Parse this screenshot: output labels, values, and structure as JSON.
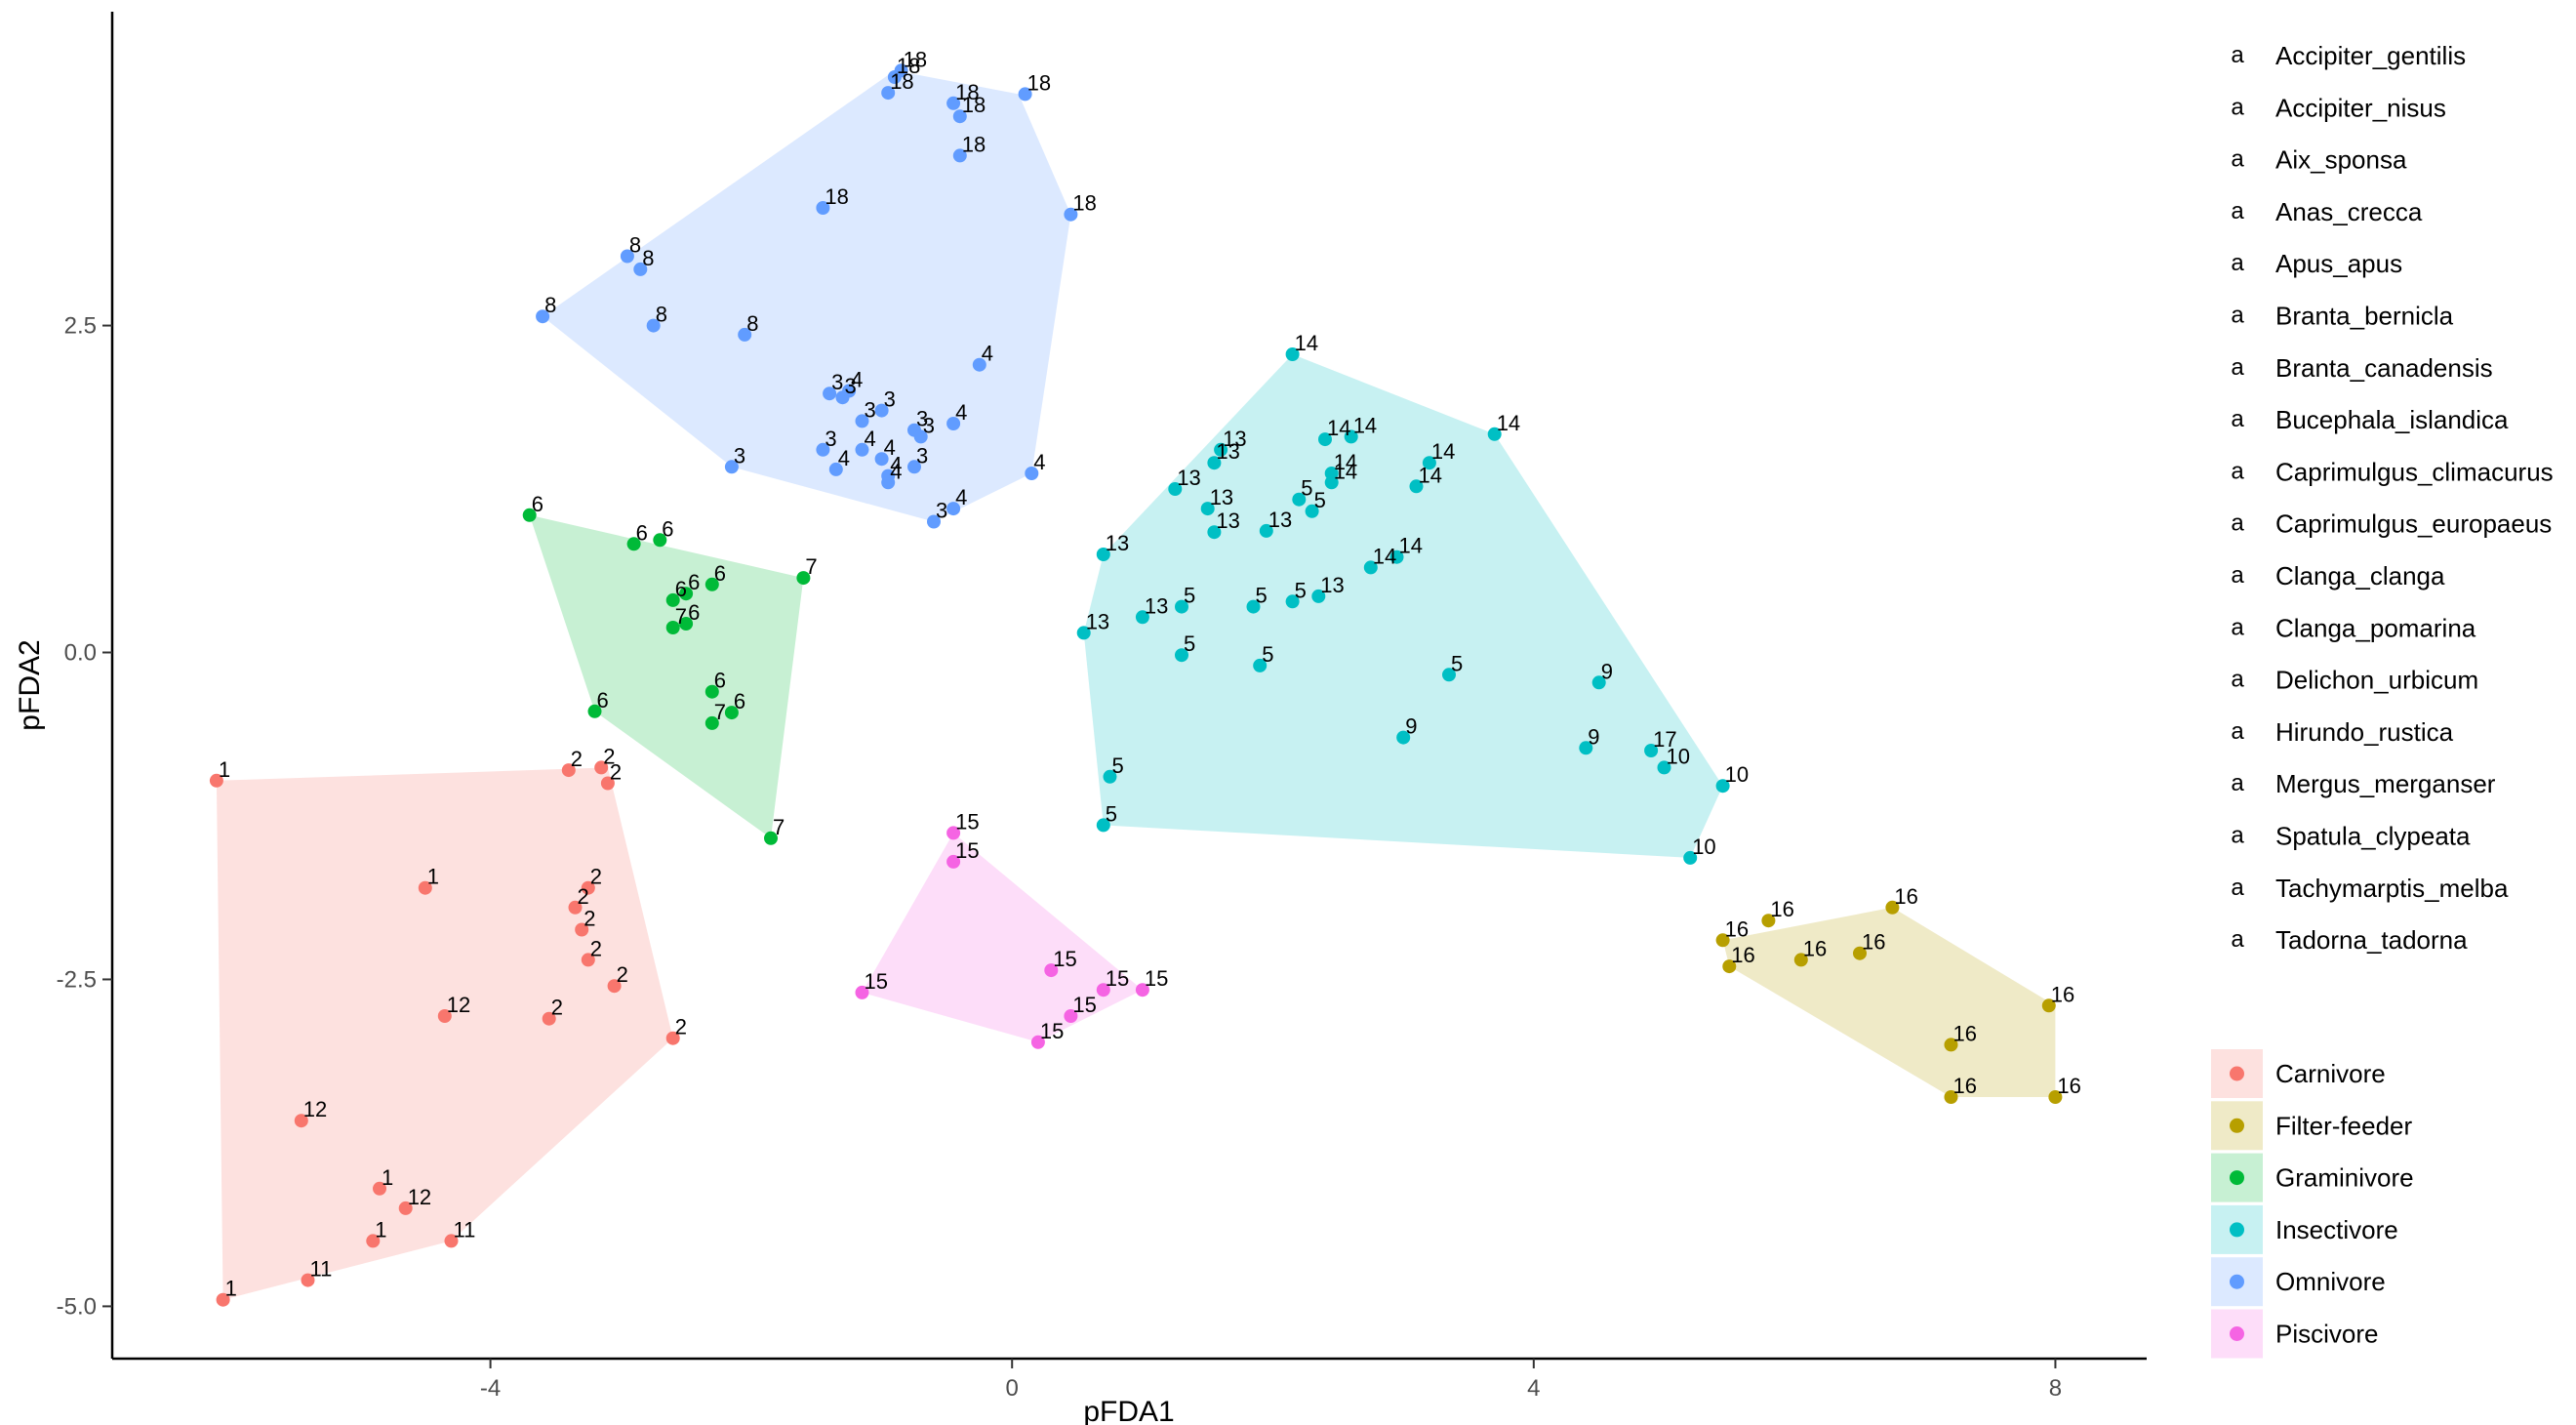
{
  "chart_data": {
    "type": "scatter",
    "title": "",
    "xlabel": "pFDA1",
    "ylabel": "pFDA2",
    "xlim": [
      -6.9,
      8.7
    ],
    "ylim": [
      -5.4,
      4.9
    ],
    "x_ticks": [
      -4,
      0,
      4,
      8
    ],
    "y_ticks": [
      -5.0,
      -2.5,
      0.0,
      2.5
    ],
    "x_tick_labels": [
      "-4",
      "0",
      "4",
      "8"
    ],
    "y_tick_labels": [
      "-5.0",
      "-2.5",
      "0.0",
      "2.5"
    ],
    "grid": false,
    "hull_fill_alpha": 0.22,
    "species_legend": {
      "key_glyph": "a",
      "items": [
        "Accipiter_gentilis",
        "Accipiter_nisus",
        "Aix_sponsa",
        "Anas_crecca",
        "Apus_apus",
        "Branta_bernicla",
        "Branta_canadensis",
        "Bucephala_islandica",
        "Caprimulgus_climacurus",
        "Caprimulgus_europaeus",
        "Clanga_clanga",
        "Clanga_pomarina",
        "Delichon_urbicum",
        "Hirundo_rustica",
        "Mergus_merganser",
        "Spatula_clypeata",
        "Tachymarptis_melba",
        "Tadorna_tadorna"
      ]
    },
    "legend_position": "right",
    "series": [
      {
        "name": "Carnivore",
        "color": "#F8766D",
        "hull": [
          [
            -6.1,
            -0.98
          ],
          [
            -3.1,
            -0.88
          ],
          [
            -2.6,
            -2.95
          ],
          [
            -4.3,
            -4.5
          ],
          [
            -6.05,
            -4.95
          ]
        ],
        "points": [
          {
            "x": -6.1,
            "y": -0.98,
            "label": "1"
          },
          {
            "x": -4.5,
            "y": -1.8,
            "label": "1"
          },
          {
            "x": -4.85,
            "y": -4.1,
            "label": "1"
          },
          {
            "x": -4.9,
            "y": -4.5,
            "label": "1"
          },
          {
            "x": -6.05,
            "y": -4.95,
            "label": "1"
          },
          {
            "x": -3.4,
            "y": -0.9,
            "label": "2"
          },
          {
            "x": -3.15,
            "y": -0.88,
            "label": "2"
          },
          {
            "x": -3.1,
            "y": -1.0,
            "label": "2"
          },
          {
            "x": -3.25,
            "y": -1.8,
            "label": "2"
          },
          {
            "x": -3.35,
            "y": -1.95,
            "label": "2"
          },
          {
            "x": -3.3,
            "y": -2.12,
            "label": "2"
          },
          {
            "x": -3.25,
            "y": -2.35,
            "label": "2"
          },
          {
            "x": -3.05,
            "y": -2.55,
            "label": "2"
          },
          {
            "x": -3.55,
            "y": -2.8,
            "label": "2"
          },
          {
            "x": -2.6,
            "y": -2.95,
            "label": "2"
          },
          {
            "x": -4.3,
            "y": -4.5,
            "label": "11"
          },
          {
            "x": -5.4,
            "y": -4.8,
            "label": "11"
          },
          {
            "x": -4.35,
            "y": -2.78,
            "label": "12"
          },
          {
            "x": -5.45,
            "y": -3.58,
            "label": "12"
          },
          {
            "x": -4.65,
            "y": -4.25,
            "label": "12"
          }
        ]
      },
      {
        "name": "Filter-feeder",
        "color": "#B79F00",
        "hull": [
          [
            5.45,
            -2.2
          ],
          [
            6.75,
            -1.95
          ],
          [
            8.0,
            -2.7
          ],
          [
            8.0,
            -3.4
          ],
          [
            7.2,
            -3.4
          ],
          [
            5.5,
            -2.4
          ]
        ],
        "points": [
          {
            "x": 5.45,
            "y": -2.2,
            "label": "16"
          },
          {
            "x": 5.8,
            "y": -2.05,
            "label": "16"
          },
          {
            "x": 6.75,
            "y": -1.95,
            "label": "16"
          },
          {
            "x": 5.5,
            "y": -2.4,
            "label": "16"
          },
          {
            "x": 6.05,
            "y": -2.35,
            "label": "16"
          },
          {
            "x": 6.5,
            "y": -2.3,
            "label": "16"
          },
          {
            "x": 7.95,
            "y": -2.7,
            "label": "16"
          },
          {
            "x": 7.2,
            "y": -3.0,
            "label": "16"
          },
          {
            "x": 7.2,
            "y": -3.4,
            "label": "16"
          },
          {
            "x": 8.0,
            "y": -3.4,
            "label": "16"
          }
        ]
      },
      {
        "name": "Graminivore",
        "color": "#00BA38",
        "hull": [
          [
            -3.7,
            1.05
          ],
          [
            -1.6,
            0.57
          ],
          [
            -1.85,
            -1.42
          ],
          [
            -3.2,
            -0.45
          ]
        ],
        "points": [
          {
            "x": -3.7,
            "y": 1.05,
            "label": "6"
          },
          {
            "x": -2.9,
            "y": 0.83,
            "label": "6"
          },
          {
            "x": -2.7,
            "y": 0.86,
            "label": "6"
          },
          {
            "x": -2.5,
            "y": 0.45,
            "label": "6"
          },
          {
            "x": -2.6,
            "y": 0.4,
            "label": "6"
          },
          {
            "x": -2.3,
            "y": 0.52,
            "label": "6"
          },
          {
            "x": -2.5,
            "y": 0.22,
            "label": "6"
          },
          {
            "x": -3.2,
            "y": -0.45,
            "label": "6"
          },
          {
            "x": -2.3,
            "y": -0.3,
            "label": "6"
          },
          {
            "x": -2.15,
            "y": -0.46,
            "label": "6"
          },
          {
            "x": -1.6,
            "y": 0.57,
            "label": "7"
          },
          {
            "x": -2.6,
            "y": 0.19,
            "label": "7"
          },
          {
            "x": -2.3,
            "y": -0.54,
            "label": "7"
          },
          {
            "x": -1.85,
            "y": -1.42,
            "label": "7"
          }
        ]
      },
      {
        "name": "Insectivore",
        "color": "#00BFC4",
        "hull": [
          [
            2.15,
            2.28
          ],
          [
            3.7,
            1.67
          ],
          [
            5.45,
            -1.02
          ],
          [
            5.2,
            -1.57
          ],
          [
            0.7,
            -1.32
          ],
          [
            0.55,
            0.15
          ],
          [
            0.7,
            0.75
          ]
        ],
        "points": [
          {
            "x": 0.75,
            "y": -0.95,
            "label": "5"
          },
          {
            "x": 0.7,
            "y": -1.32,
            "label": "5"
          },
          {
            "x": 1.3,
            "y": 0.35,
            "label": "5"
          },
          {
            "x": 1.3,
            "y": -0.02,
            "label": "5"
          },
          {
            "x": 1.85,
            "y": 0.35,
            "label": "5"
          },
          {
            "x": 1.9,
            "y": -0.1,
            "label": "5"
          },
          {
            "x": 2.2,
            "y": 1.17,
            "label": "5"
          },
          {
            "x": 2.3,
            "y": 1.08,
            "label": "5"
          },
          {
            "x": 2.15,
            "y": 0.39,
            "label": "5"
          },
          {
            "x": 3.35,
            "y": -0.17,
            "label": "5"
          },
          {
            "x": 3.0,
            "y": -0.65,
            "label": "9"
          },
          {
            "x": 4.5,
            "y": -0.23,
            "label": "9"
          },
          {
            "x": 4.4,
            "y": -0.73,
            "label": "9"
          },
          {
            "x": 5.0,
            "y": -0.88,
            "label": "10"
          },
          {
            "x": 5.45,
            "y": -1.02,
            "label": "10"
          },
          {
            "x": 5.2,
            "y": -1.57,
            "label": "10"
          },
          {
            "x": 0.7,
            "y": 0.75,
            "label": "13"
          },
          {
            "x": 1.25,
            "y": 1.25,
            "label": "13"
          },
          {
            "x": 1.5,
            "y": 1.1,
            "label": "13"
          },
          {
            "x": 1.55,
            "y": 0.92,
            "label": "13"
          },
          {
            "x": 1.95,
            "y": 0.93,
            "label": "13"
          },
          {
            "x": 1.55,
            "y": 1.45,
            "label": "13"
          },
          {
            "x": 1.6,
            "y": 1.55,
            "label": "13"
          },
          {
            "x": 1.0,
            "y": 0.27,
            "label": "13"
          },
          {
            "x": 0.55,
            "y": 0.15,
            "label": "13"
          },
          {
            "x": 2.35,
            "y": 0.43,
            "label": "13"
          },
          {
            "x": 2.15,
            "y": 2.28,
            "label": "14"
          },
          {
            "x": 3.7,
            "y": 1.67,
            "label": "14"
          },
          {
            "x": 2.4,
            "y": 1.63,
            "label": "14"
          },
          {
            "x": 2.6,
            "y": 1.65,
            "label": "14"
          },
          {
            "x": 2.45,
            "y": 1.37,
            "label": "14"
          },
          {
            "x": 2.45,
            "y": 1.3,
            "label": "14"
          },
          {
            "x": 3.2,
            "y": 1.45,
            "label": "14"
          },
          {
            "x": 3.1,
            "y": 1.27,
            "label": "14"
          },
          {
            "x": 2.75,
            "y": 0.65,
            "label": "14"
          },
          {
            "x": 2.95,
            "y": 0.73,
            "label": "14"
          },
          {
            "x": 4.9,
            "y": -0.75,
            "label": "17"
          }
        ]
      },
      {
        "name": "Omnivore",
        "color": "#619CFF",
        "hull": [
          [
            -3.6,
            2.57
          ],
          [
            -0.9,
            4.45
          ],
          [
            0.05,
            4.27
          ],
          [
            0.45,
            3.35
          ],
          [
            0.15,
            1.37
          ],
          [
            -0.6,
            1.0
          ],
          [
            -2.15,
            1.42
          ]
        ],
        "points": [
          {
            "x": -2.15,
            "y": 1.42,
            "label": "3"
          },
          {
            "x": -1.45,
            "y": 1.55,
            "label": "3"
          },
          {
            "x": -1.4,
            "y": 1.98,
            "label": "3"
          },
          {
            "x": -1.15,
            "y": 1.77,
            "label": "3"
          },
          {
            "x": -1.0,
            "y": 1.85,
            "label": "3"
          },
          {
            "x": -0.75,
            "y": 1.7,
            "label": "3"
          },
          {
            "x": -0.7,
            "y": 1.65,
            "label": "3"
          },
          {
            "x": -0.75,
            "y": 1.42,
            "label": "3"
          },
          {
            "x": -0.6,
            "y": 1.0,
            "label": "3"
          },
          {
            "x": -1.3,
            "y": 1.95,
            "label": "3"
          },
          {
            "x": -1.25,
            "y": 2.0,
            "label": "4"
          },
          {
            "x": -1.35,
            "y": 1.4,
            "label": "4"
          },
          {
            "x": -1.15,
            "y": 1.55,
            "label": "4"
          },
          {
            "x": -1.0,
            "y": 1.48,
            "label": "4"
          },
          {
            "x": -0.95,
            "y": 1.3,
            "label": "4"
          },
          {
            "x": -0.95,
            "y": 1.35,
            "label": "4"
          },
          {
            "x": -0.45,
            "y": 1.75,
            "label": "4"
          },
          {
            "x": -0.25,
            "y": 2.2,
            "label": "4"
          },
          {
            "x": 0.15,
            "y": 1.37,
            "label": "4"
          },
          {
            "x": -0.45,
            "y": 1.1,
            "label": "4"
          },
          {
            "x": -3.6,
            "y": 2.57,
            "label": "8"
          },
          {
            "x": -2.95,
            "y": 3.03,
            "label": "8"
          },
          {
            "x": -2.85,
            "y": 2.93,
            "label": "8"
          },
          {
            "x": -2.75,
            "y": 2.5,
            "label": "8"
          },
          {
            "x": -2.05,
            "y": 2.43,
            "label": "8"
          },
          {
            "x": -1.45,
            "y": 3.4,
            "label": "18"
          },
          {
            "x": -0.95,
            "y": 4.28,
            "label": "18"
          },
          {
            "x": -0.9,
            "y": 4.4,
            "label": "18"
          },
          {
            "x": -0.85,
            "y": 4.45,
            "label": "18"
          },
          {
            "x": -0.45,
            "y": 4.2,
            "label": "18"
          },
          {
            "x": -0.4,
            "y": 4.1,
            "label": "18"
          },
          {
            "x": -0.4,
            "y": 3.8,
            "label": "18"
          },
          {
            "x": 0.1,
            "y": 4.27,
            "label": "18"
          },
          {
            "x": 0.45,
            "y": 3.35,
            "label": "18"
          }
        ]
      },
      {
        "name": "Piscivore",
        "color": "#F564E3",
        "hull": [
          [
            -0.45,
            -1.38
          ],
          [
            1.0,
            -2.58
          ],
          [
            0.2,
            -2.98
          ],
          [
            -1.15,
            -2.6
          ]
        ],
        "points": [
          {
            "x": -0.45,
            "y": -1.38,
            "label": "15"
          },
          {
            "x": -0.45,
            "y": -1.6,
            "label": "15"
          },
          {
            "x": 0.3,
            "y": -2.43,
            "label": "15"
          },
          {
            "x": 0.7,
            "y": -2.58,
            "label": "15"
          },
          {
            "x": 1.0,
            "y": -2.58,
            "label": "15"
          },
          {
            "x": 0.45,
            "y": -2.78,
            "label": "15"
          },
          {
            "x": 0.2,
            "y": -2.98,
            "label": "15"
          },
          {
            "x": -1.15,
            "y": -2.6,
            "label": "15"
          }
        ]
      }
    ]
  }
}
